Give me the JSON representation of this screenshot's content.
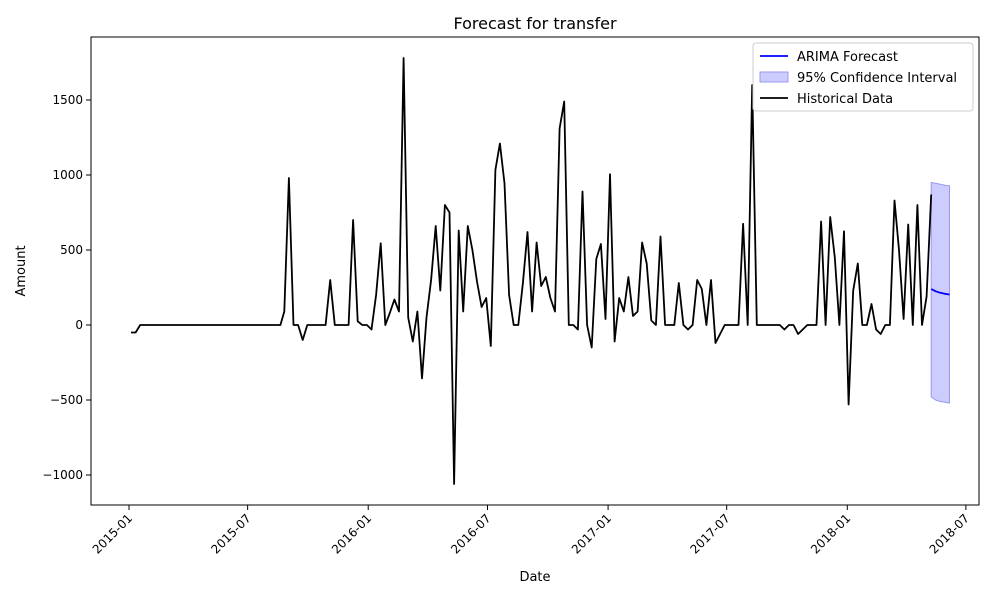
{
  "chart_data": {
    "type": "line",
    "title": "Forecast for transfer",
    "xlabel": "Date",
    "ylabel": "Amount",
    "x_ticks": [
      "2015-01",
      "2015-07",
      "2016-01",
      "2016-07",
      "2017-01",
      "2017-07",
      "2018-01",
      "2018-07"
    ],
    "y_ticks": [
      -1000,
      -500,
      0,
      500,
      1000,
      1500
    ],
    "xlim": [
      "2014-11-04",
      "2018-07-21"
    ],
    "ylim": [
      -1200,
      1920
    ],
    "grid": false,
    "legend_position": "top-right",
    "legend": [
      {
        "label": "ARIMA Forecast",
        "kind": "line",
        "color": "#0000ff"
      },
      {
        "label": "95% Confidence Interval",
        "kind": "patch",
        "color": "#ccccff"
      },
      {
        "label": "Historical Data",
        "kind": "line",
        "color": "#000000"
      }
    ],
    "series": [
      {
        "name": "Historical Data",
        "color": "#000000",
        "points": [
          [
            "2015-01-04",
            -50
          ],
          [
            "2015-01-11",
            -50
          ],
          [
            "2015-01-18",
            0
          ],
          [
            "2015-02-01",
            0
          ],
          [
            "2015-03-01",
            0
          ],
          [
            "2015-04-01",
            0
          ],
          [
            "2015-05-01",
            0
          ],
          [
            "2015-06-01",
            0
          ],
          [
            "2015-07-01",
            0
          ],
          [
            "2015-08-01",
            0
          ],
          [
            "2015-08-20",
            0
          ],
          [
            "2015-08-26",
            90
          ],
          [
            "2015-09-02",
            980
          ],
          [
            "2015-09-09",
            0
          ],
          [
            "2015-09-16",
            0
          ],
          [
            "2015-09-23",
            -100
          ],
          [
            "2015-09-30",
            0
          ],
          [
            "2015-10-07",
            0
          ],
          [
            "2015-10-14",
            0
          ],
          [
            "2015-10-21",
            0
          ],
          [
            "2015-10-28",
            0
          ],
          [
            "2015-11-04",
            300
          ],
          [
            "2015-11-11",
            0
          ],
          [
            "2015-11-18",
            0
          ],
          [
            "2015-11-25",
            0
          ],
          [
            "2015-12-02",
            0
          ],
          [
            "2015-12-09",
            700
          ],
          [
            "2015-12-16",
            25
          ],
          [
            "2015-12-23",
            0
          ],
          [
            "2015-12-30",
            0
          ],
          [
            "2016-01-06",
            -30
          ],
          [
            "2016-01-13",
            200
          ],
          [
            "2016-01-20",
            545
          ],
          [
            "2016-01-27",
            0
          ],
          [
            "2016-02-03",
            80
          ],
          [
            "2016-02-10",
            170
          ],
          [
            "2016-02-17",
            90
          ],
          [
            "2016-02-24",
            1780
          ],
          [
            "2016-03-02",
            50
          ],
          [
            "2016-03-09",
            -110
          ],
          [
            "2016-03-16",
            90
          ],
          [
            "2016-03-23",
            -355
          ],
          [
            "2016-03-30",
            50
          ],
          [
            "2016-04-06",
            300
          ],
          [
            "2016-04-13",
            660
          ],
          [
            "2016-04-20",
            230
          ],
          [
            "2016-04-27",
            800
          ],
          [
            "2016-05-04",
            750
          ],
          [
            "2016-05-11",
            -1060
          ],
          [
            "2016-05-18",
            630
          ],
          [
            "2016-05-25",
            90
          ],
          [
            "2016-06-01",
            660
          ],
          [
            "2016-06-08",
            500
          ],
          [
            "2016-06-15",
            290
          ],
          [
            "2016-06-22",
            120
          ],
          [
            "2016-06-29",
            180
          ],
          [
            "2016-07-06",
            -140
          ],
          [
            "2016-07-13",
            1035
          ],
          [
            "2016-07-20",
            1210
          ],
          [
            "2016-07-27",
            945
          ],
          [
            "2016-08-03",
            200
          ],
          [
            "2016-08-10",
            0
          ],
          [
            "2016-08-17",
            0
          ],
          [
            "2016-08-24",
            280
          ],
          [
            "2016-08-31",
            620
          ],
          [
            "2016-09-07",
            90
          ],
          [
            "2016-09-14",
            550
          ],
          [
            "2016-09-21",
            260
          ],
          [
            "2016-09-28",
            320
          ],
          [
            "2016-10-05",
            180
          ],
          [
            "2016-10-12",
            90
          ],
          [
            "2016-10-19",
            1310
          ],
          [
            "2016-10-26",
            1490
          ],
          [
            "2016-11-02",
            0
          ],
          [
            "2016-11-09",
            0
          ],
          [
            "2016-11-16",
            -30
          ],
          [
            "2016-11-23",
            890
          ],
          [
            "2016-11-30",
            0
          ],
          [
            "2016-12-07",
            -150
          ],
          [
            "2016-12-14",
            440
          ],
          [
            "2016-12-21",
            540
          ],
          [
            "2016-12-28",
            40
          ],
          [
            "2017-01-04",
            1005
          ],
          [
            "2017-01-11",
            -110
          ],
          [
            "2017-01-18",
            180
          ],
          [
            "2017-01-25",
            90
          ],
          [
            "2017-02-01",
            320
          ],
          [
            "2017-02-08",
            60
          ],
          [
            "2017-02-15",
            90
          ],
          [
            "2017-02-22",
            550
          ],
          [
            "2017-03-01",
            410
          ],
          [
            "2017-03-08",
            30
          ],
          [
            "2017-03-15",
            0
          ],
          [
            "2017-03-22",
            590
          ],
          [
            "2017-03-29",
            0
          ],
          [
            "2017-04-05",
            0
          ],
          [
            "2017-04-12",
            0
          ],
          [
            "2017-04-19",
            280
          ],
          [
            "2017-04-26",
            0
          ],
          [
            "2017-05-03",
            -30
          ],
          [
            "2017-05-10",
            0
          ],
          [
            "2017-05-17",
            300
          ],
          [
            "2017-05-24",
            240
          ],
          [
            "2017-05-31",
            0
          ],
          [
            "2017-06-07",
            300
          ],
          [
            "2017-06-14",
            -120
          ],
          [
            "2017-06-21",
            -60
          ],
          [
            "2017-06-28",
            0
          ],
          [
            "2017-07-05",
            0
          ],
          [
            "2017-07-12",
            0
          ],
          [
            "2017-07-19",
            0
          ],
          [
            "2017-07-26",
            675
          ],
          [
            "2017-08-02",
            0
          ],
          [
            "2017-08-09",
            1600
          ],
          [
            "2017-08-16",
            0
          ],
          [
            "2017-08-23",
            0
          ],
          [
            "2017-08-30",
            0
          ],
          [
            "2017-09-06",
            0
          ],
          [
            "2017-09-13",
            0
          ],
          [
            "2017-09-20",
            0
          ],
          [
            "2017-09-27",
            -30
          ],
          [
            "2017-10-04",
            0
          ],
          [
            "2017-10-11",
            0
          ],
          [
            "2017-10-18",
            -60
          ],
          [
            "2017-10-25",
            -30
          ],
          [
            "2017-11-01",
            0
          ],
          [
            "2017-11-08",
            0
          ],
          [
            "2017-11-15",
            0
          ],
          [
            "2017-11-22",
            690
          ],
          [
            "2017-11-29",
            0
          ],
          [
            "2017-12-06",
            720
          ],
          [
            "2017-12-13",
            450
          ],
          [
            "2017-12-20",
            0
          ],
          [
            "2017-12-27",
            625
          ],
          [
            "2018-01-03",
            -530
          ],
          [
            "2018-01-10",
            230
          ],
          [
            "2018-01-17",
            410
          ],
          [
            "2018-01-24",
            0
          ],
          [
            "2018-01-31",
            0
          ],
          [
            "2018-02-07",
            140
          ],
          [
            "2018-02-14",
            -30
          ],
          [
            "2018-02-21",
            -60
          ],
          [
            "2018-02-28",
            0
          ],
          [
            "2018-03-07",
            0
          ],
          [
            "2018-03-14",
            830
          ],
          [
            "2018-03-21",
            500
          ],
          [
            "2018-03-28",
            40
          ],
          [
            "2018-04-04",
            670
          ],
          [
            "2018-04-11",
            0
          ],
          [
            "2018-04-18",
            800
          ],
          [
            "2018-04-25",
            0
          ],
          [
            "2018-05-02",
            190
          ],
          [
            "2018-05-09",
            870
          ]
        ]
      },
      {
        "name": "ARIMA Forecast",
        "color": "#0000ff",
        "points": [
          [
            "2018-05-09",
            240
          ],
          [
            "2018-05-16",
            225
          ],
          [
            "2018-05-23",
            215
          ],
          [
            "2018-05-30",
            208
          ],
          [
            "2018-06-06",
            203
          ]
        ]
      }
    ],
    "confidence_interval": {
      "name": "95% Confidence Interval",
      "color": "#ccccff",
      "points": [
        [
          "2018-05-09",
          -480,
          950
        ],
        [
          "2018-05-16",
          -500,
          945
        ],
        [
          "2018-05-23",
          -510,
          938
        ],
        [
          "2018-05-30",
          -515,
          932
        ],
        [
          "2018-06-06",
          -520,
          928
        ]
      ]
    }
  }
}
